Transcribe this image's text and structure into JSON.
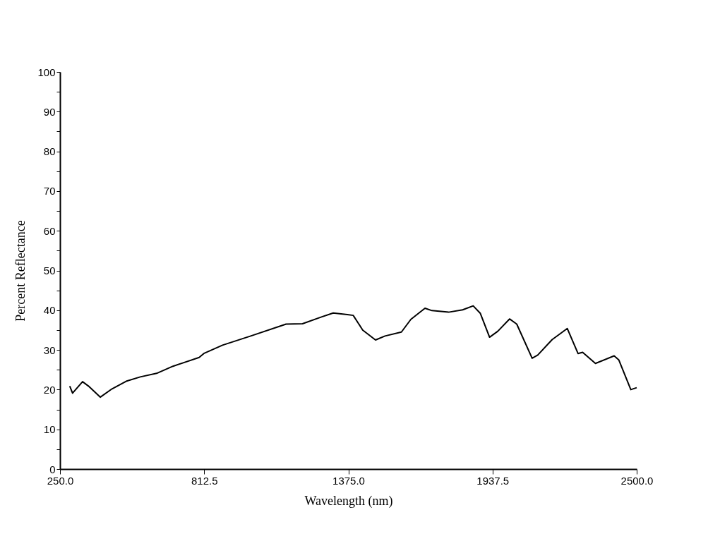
{
  "chart_data": {
    "type": "line",
    "xlabel": "Wavelength (nm)",
    "ylabel": "Percent Reflectance",
    "xlim": [
      250,
      2500
    ],
    "xticks": [
      {
        "value": 250,
        "label": "250.0"
      },
      {
        "value": 812.5,
        "label": "812.5"
      },
      {
        "value": 1375,
        "label": "1375.0"
      },
      {
        "value": 1937.5,
        "label": "1937.5"
      },
      {
        "value": 2500,
        "label": "2500.0"
      }
    ],
    "ylim": [
      0,
      100
    ],
    "yticks": [
      0,
      {
        "value": 5,
        "label": null
      },
      10,
      {
        "value": 15,
        "label": null
      },
      20,
      {
        "value": 25,
        "label": null
      },
      30,
      {
        "value": 35,
        "label": null
      },
      40,
      {
        "value": 45,
        "label": null
      },
      50,
      {
        "value": 55,
        "label": null
      },
      60,
      {
        "value": 65,
        "label": null
      },
      70,
      {
        "value": 75,
        "label": null
      },
      80,
      {
        "value": 85,
        "label": null
      },
      90,
      {
        "value": 95,
        "label": null
      },
      100
    ],
    "grid": false,
    "legend": false,
    "marker": "none",
    "line_style": "solid",
    "series": [
      {
        "color": "#000000",
        "x": [
          288,
          299,
          338,
          361,
          407,
          453,
          508,
          563,
          627,
          691,
          793,
          811,
          884,
          994,
          1132,
          1196,
          1270,
          1316,
          1371,
          1394,
          1431,
          1481,
          1518,
          1582,
          1619,
          1674,
          1701,
          1766,
          1821,
          1862,
          1890,
          1926,
          1958,
          2004,
          2032,
          2092,
          2114,
          2170,
          2229,
          2271,
          2289,
          2339,
          2412,
          2430,
          2477,
          2500
        ],
        "values": [
          20.9,
          19.1,
          22.0,
          20.9,
          18.1,
          20.2,
          22.1,
          23.2,
          24.1,
          25.9,
          28.1,
          29.1,
          31.2,
          33.5,
          36.5,
          36.6,
          38.3,
          39.3,
          38.9,
          38.7,
          35.0,
          32.5,
          33.5,
          34.5,
          37.7,
          40.5,
          39.9,
          39.5,
          40.1,
          41.1,
          39.2,
          33.2,
          34.7,
          37.8,
          36.5,
          27.9,
          28.7,
          32.6,
          35.4,
          29.1,
          29.4,
          26.6,
          28.5,
          27.5,
          20.0,
          20.5
        ]
      }
    ]
  }
}
